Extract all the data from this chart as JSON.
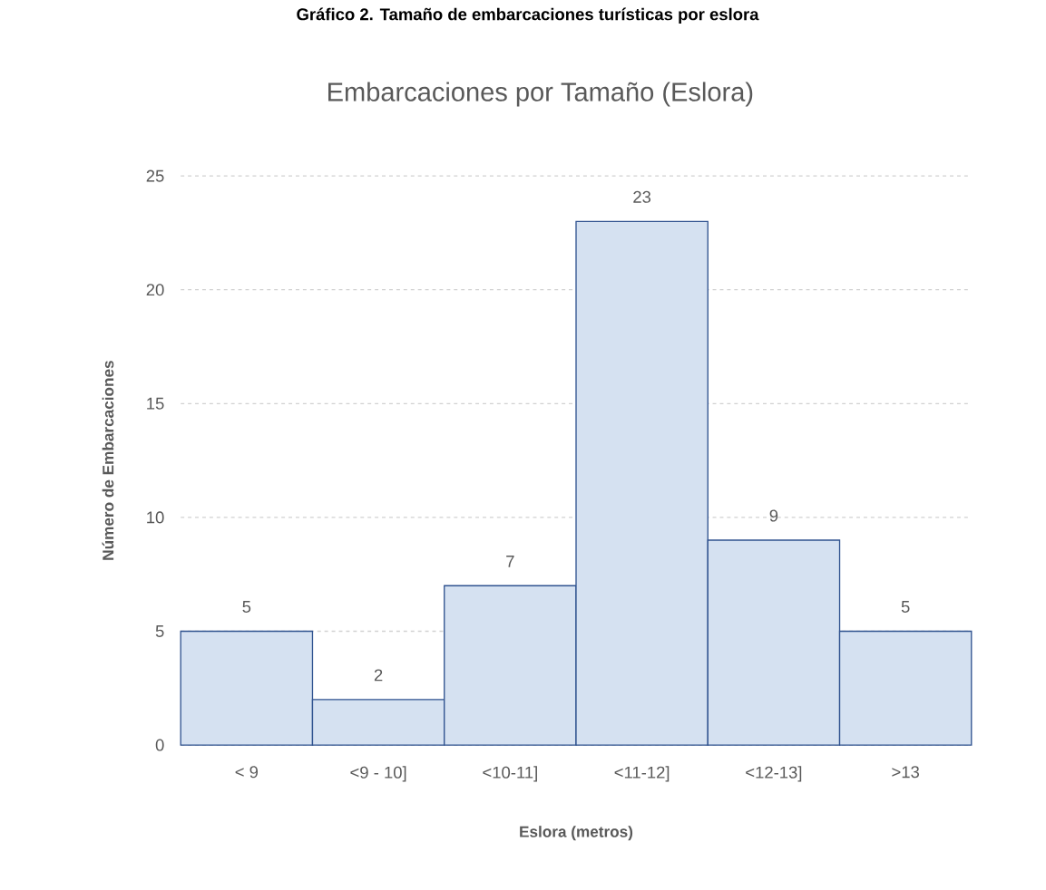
{
  "chart_data": {
    "type": "bar",
    "title": "Embarcaciones por Tamaño (Eslora)",
    "annotations": [
      "Gráfico 2. Tamaño de embarcaciones turísticas por eslora"
    ],
    "xlabel": "Eslora (metros)",
    "ylabel": "Número de Embarcaciones",
    "categories": [
      "< 9",
      "<9 - 10]",
      "<10-11]",
      "<11-12]",
      "<12-13]",
      ">13"
    ],
    "values": [
      5,
      2,
      7,
      23,
      9,
      5
    ],
    "color": "#d5e1f1",
    "ylim": [
      0,
      25
    ],
    "yticks": [
      0,
      5,
      10,
      15,
      20,
      25
    ],
    "grid": "y",
    "data_labels": true
  }
}
